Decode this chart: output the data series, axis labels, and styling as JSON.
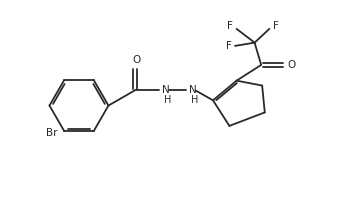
{
  "bg_color": "#ffffff",
  "line_color": "#2a2a2a",
  "line_width": 1.3,
  "font_size": 7.5,
  "fig_width": 3.48,
  "fig_height": 1.98,
  "dpi": 100,
  "xlim": [
    0,
    10.5
  ],
  "ylim": [
    0,
    6.0
  ]
}
